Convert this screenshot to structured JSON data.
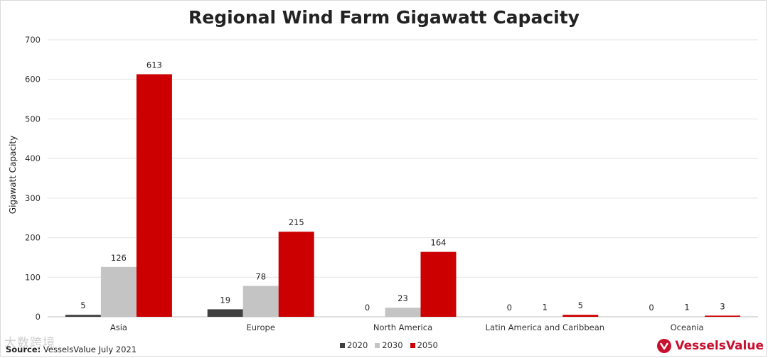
{
  "chart_data": {
    "type": "bar",
    "title": "Regional Wind Farm Gigawatt Capacity",
    "xlabel": "",
    "ylabel": "Gigawatt Capacity",
    "ylim": [
      0,
      700
    ],
    "yticks": [
      0,
      100,
      200,
      300,
      400,
      500,
      600,
      700
    ],
    "grid": true,
    "legend": "bottom-center",
    "categories": [
      "Asia",
      "Europe",
      "North America",
      "Latin America and Caribbean",
      "Oceania"
    ],
    "series": [
      {
        "name": "2020",
        "color": "#404040",
        "values": [
          5,
          19,
          0,
          0,
          0
        ]
      },
      {
        "name": "2030",
        "color": "#c4c4c4",
        "values": [
          126,
          78,
          23,
          1,
          1
        ]
      },
      {
        "name": "2050",
        "color": "#cc0000",
        "values": [
          613,
          215,
          164,
          5,
          3
        ]
      }
    ]
  },
  "footer": {
    "source_bold": "Source:",
    "source_text": " VesselsValue July 2021",
    "watermark": "大数跨境",
    "brand": "VesselsValue",
    "brand_color": "#c8102e"
  }
}
